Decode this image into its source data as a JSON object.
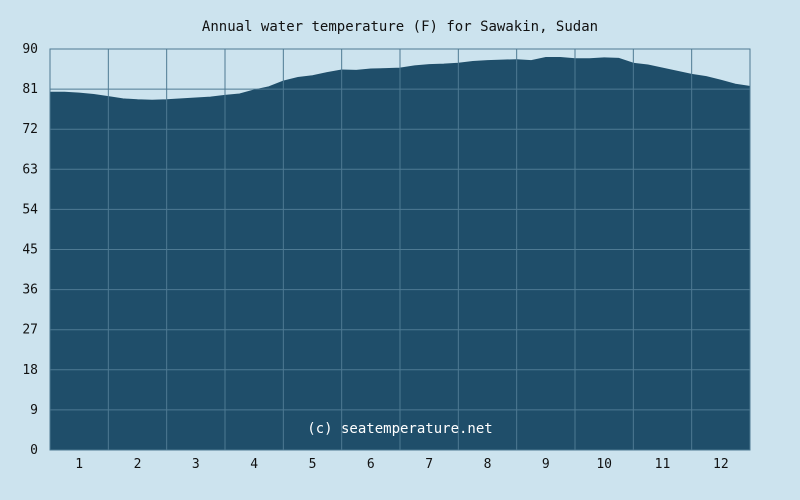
{
  "chart_data": {
    "type": "area",
    "title": "Annual water temperature (F) for Sawakin, Sudan",
    "watermark": "(c) seatemperature.net",
    "xlabel": "",
    "ylabel": "",
    "ylim": [
      0,
      90
    ],
    "xlim": [
      0.5,
      12.5
    ],
    "y_ticks": [
      0,
      9,
      18,
      27,
      36,
      45,
      54,
      63,
      72,
      81,
      90
    ],
    "x_ticks": [
      1,
      2,
      3,
      4,
      5,
      6,
      7,
      8,
      9,
      10,
      11,
      12
    ],
    "grid": true,
    "colors": {
      "fill": "#1f4e6a",
      "grid": "#4e7a93",
      "background": "#cce3ee"
    },
    "series": [
      {
        "x": [
          0.5,
          0.75,
          1.0,
          1.25,
          1.5,
          1.75,
          2.0,
          2.25,
          2.5,
          2.75,
          3.0,
          3.25,
          3.5,
          3.75,
          4.0,
          4.25,
          4.5,
          4.75,
          5.0,
          5.25,
          5.5,
          5.75,
          6.0,
          6.25,
          6.5,
          6.75,
          7.0,
          7.25,
          7.5,
          7.75,
          8.0,
          8.25,
          8.5,
          8.75,
          9.0,
          9.25,
          9.5,
          9.75,
          10.0,
          10.25,
          10.5,
          10.75,
          11.0,
          11.25,
          11.5,
          11.75,
          12.0,
          12.25,
          12.5
        ],
        "values": [
          80.3,
          80.3,
          80.1,
          79.8,
          79.3,
          78.8,
          78.6,
          78.5,
          78.6,
          78.8,
          79.0,
          79.2,
          79.6,
          79.9,
          80.8,
          81.5,
          82.8,
          83.6,
          84.0,
          84.7,
          85.3,
          85.2,
          85.5,
          85.6,
          85.7,
          86.2,
          86.5,
          86.6,
          86.8,
          87.2,
          87.4,
          87.5,
          87.6,
          87.4,
          88.1,
          88.1,
          87.8,
          87.8,
          88.0,
          87.9,
          86.8,
          86.4,
          85.7,
          85.0,
          84.3,
          83.8,
          83.0,
          82.1,
          81.6
        ]
      }
    ]
  }
}
